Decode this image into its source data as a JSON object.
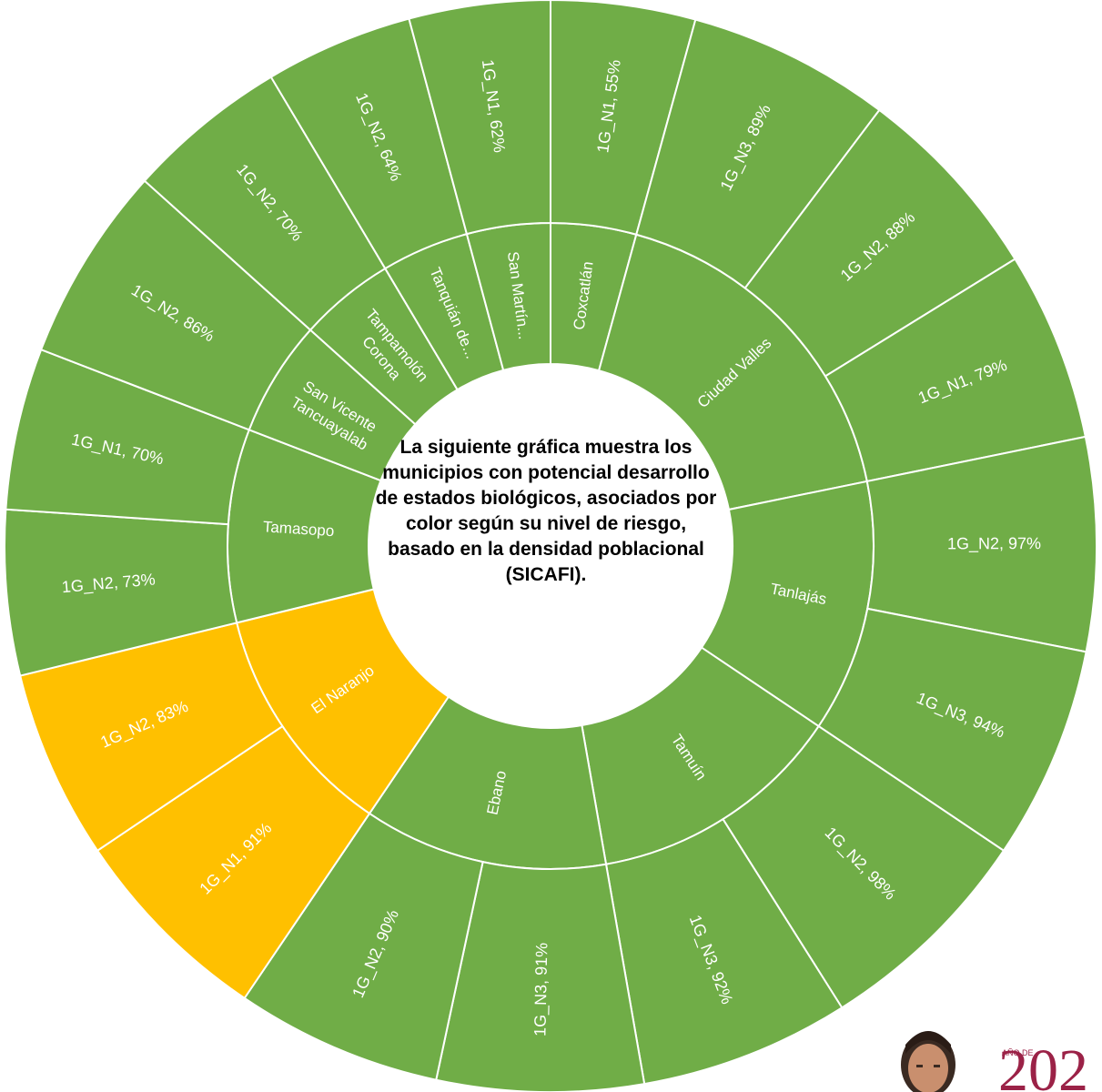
{
  "chart_data": {
    "type": "sunburst",
    "center_text": "La siguiente gráfica muestra los municipios con potencial desarrollo de estados biológicos,  asociados por color según su nivel de riesgo, basado en la densidad poblacional (SICAFI).",
    "colors": {
      "risk_low": "#70AD47",
      "risk_mid": "#FFC000",
      "border": "#ffffff"
    },
    "municipalities": [
      {
        "name": "Coxcatlán",
        "color": "risk_low",
        "segments": [
          {
            "label": "1G_N1, 55%",
            "share": 0.042
          }
        ]
      },
      {
        "name": "Ciudad Valles",
        "color": "risk_low",
        "segments": [
          {
            "label": "1G_N3, 89%",
            "share": 0.059
          },
          {
            "label": "1G_N2, 88%",
            "share": 0.058
          },
          {
            "label": "1G_N1, 79%",
            "share": 0.055
          }
        ]
      },
      {
        "name": "Tanlajás",
        "color": "risk_low",
        "segments": [
          {
            "label": "1G_N2, 97%",
            "share": 0.062
          },
          {
            "label": "1G_N3, 94%",
            "share": 0.062
          }
        ]
      },
      {
        "name": "Tamuín",
        "color": "risk_low",
        "segments": [
          {
            "label": "1G_N2, 98%",
            "share": 0.065
          },
          {
            "label": "1G_N3, 92%",
            "share": 0.061
          }
        ]
      },
      {
        "name": "Ebano",
        "color": "risk_low",
        "segments": [
          {
            "label": "1G_N3, 91%",
            "share": 0.06
          },
          {
            "label": "1G_N2, 90%",
            "share": 0.06
          }
        ]
      },
      {
        "name": "El Naranjo",
        "color": "risk_mid",
        "segments": [
          {
            "label": "1G_N1, 91%",
            "share": 0.06
          },
          {
            "label": "1G_N2, 83%",
            "share": 0.055
          }
        ]
      },
      {
        "name": "Tamasopo",
        "color": "risk_low",
        "segments": [
          {
            "label": "1G_N2, 73%",
            "share": 0.048
          },
          {
            "label": "1G_N1, 70%",
            "share": 0.047
          }
        ]
      },
      {
        "name": "San Vicente Tancuayalab",
        "color": "risk_low",
        "segments": [
          {
            "label": "1G_N2, 86%",
            "share": 0.057
          }
        ]
      },
      {
        "name": "Tampamolón Corona",
        "color": "risk_low",
        "segments": [
          {
            "label": "1G_N2, 70%",
            "share": 0.047
          }
        ]
      },
      {
        "name": "Tanquián de...",
        "color": "risk_low",
        "segments": [
          {
            "label": "1G_N2, 64%",
            "share": 0.043
          }
        ]
      },
      {
        "name": "San Martín...",
        "color": "risk_low",
        "segments": [
          {
            "label": "1G_N1, 62%",
            "share": 0.041
          }
        ]
      }
    ]
  },
  "logo": {
    "text": "202",
    "caption": "AÑO DE"
  }
}
